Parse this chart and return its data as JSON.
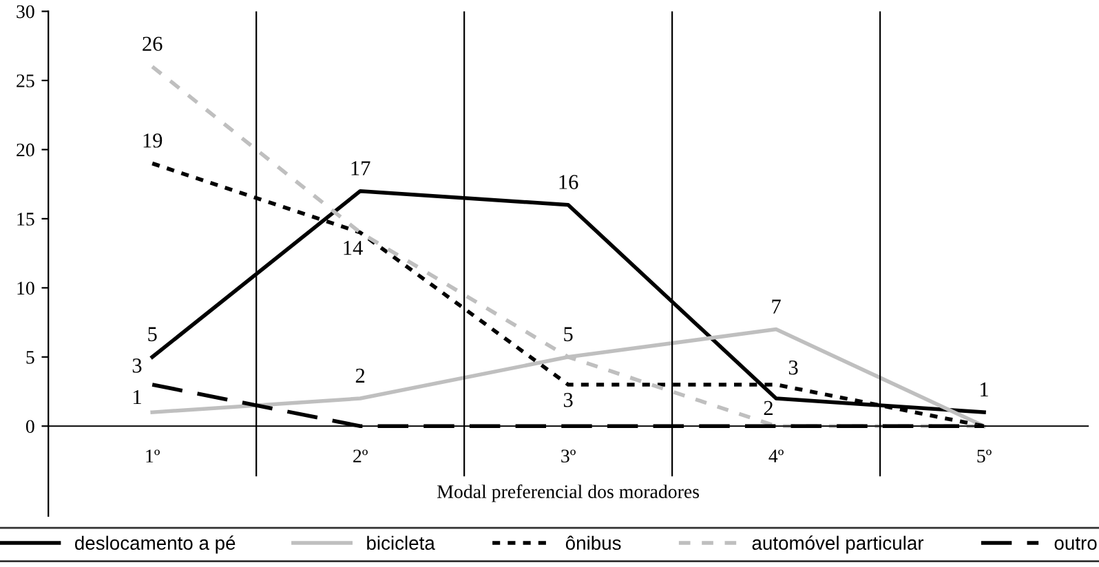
{
  "chart_data": {
    "type": "line",
    "xlabel": "Modal preferencial dos moradores",
    "categories": [
      "1º",
      "2º",
      "3º",
      "4º",
      "5º"
    ],
    "series": [
      {
        "name": "deslocamento a pé",
        "color": "#000000",
        "line_style": "solid",
        "values": [
          5,
          17,
          16,
          2,
          1
        ],
        "value_labels": [
          "5",
          "17",
          "16",
          "2",
          "1"
        ]
      },
      {
        "name": "bicicleta",
        "color": "#bfbfbf",
        "line_style": "solid",
        "values": [
          1,
          2,
          5,
          7,
          0
        ],
        "value_labels": [
          "1",
          "2",
          null,
          "7",
          null
        ]
      },
      {
        "name": "ônibus",
        "color": "#000000",
        "line_style": "dotted",
        "values": [
          19,
          14,
          3,
          3,
          0
        ],
        "value_labels": [
          "19",
          "14",
          "3",
          "3",
          null
        ]
      },
      {
        "name": "automóvel particular",
        "color": "#bfbfbf",
        "line_style": "dashed",
        "values": [
          26,
          14,
          5,
          0,
          0
        ],
        "value_labels": [
          "26",
          null,
          "5",
          null,
          null
        ]
      },
      {
        "name": "outro",
        "color": "#000000",
        "line_style": "longdash",
        "values": [
          3,
          0,
          0,
          0,
          0
        ],
        "value_labels": [
          "3",
          null,
          null,
          null,
          null
        ]
      }
    ],
    "ylim": [
      -6.5,
      30
    ],
    "yticks": [
      0,
      5,
      10,
      15,
      20,
      25,
      30
    ],
    "grid": "x",
    "legend": "bottom",
    "marker": "none"
  }
}
